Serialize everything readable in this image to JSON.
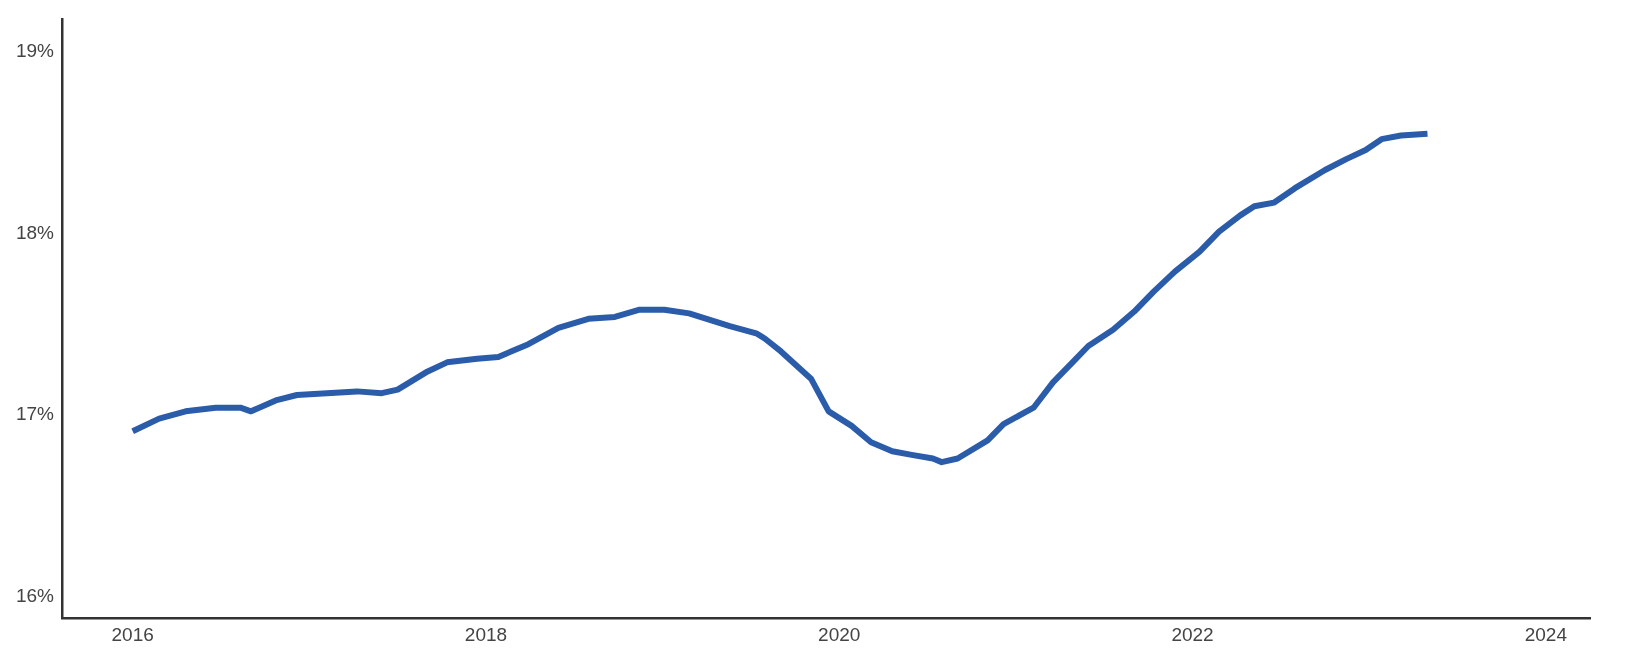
{
  "chart_data": {
    "type": "line",
    "x": [
      2016.0,
      2016.15,
      2016.3,
      2016.47,
      2016.61,
      2016.67,
      2016.81,
      2016.93,
      2017.1,
      2017.27,
      2017.41,
      2017.5,
      2017.67,
      2017.78,
      2017.95,
      2018.07,
      2018.24,
      2018.41,
      2018.58,
      2018.73,
      2018.87,
      2019.01,
      2019.15,
      2019.38,
      2019.53,
      2019.58,
      2019.67,
      2019.84,
      2019.94,
      2020.07,
      2020.18,
      2020.3,
      2020.41,
      2020.53,
      2020.58,
      2020.67,
      2020.84,
      2020.93,
      2021.1,
      2021.21,
      2021.33,
      2021.41,
      2021.55,
      2021.67,
      2021.78,
      2021.9,
      2022.04,
      2022.15,
      2022.27,
      2022.35,
      2022.46,
      2022.58,
      2022.75,
      2022.87,
      2022.98,
      2023.07,
      2023.18,
      2023.33
    ],
    "series": [
      {
        "color": "#2a5caa",
        "values": [
          16.91,
          16.98,
          17.02,
          17.04,
          17.04,
          17.02,
          17.08,
          17.11,
          17.12,
          17.13,
          17.12,
          17.14,
          17.24,
          17.29,
          17.31,
          17.32,
          17.39,
          17.48,
          17.53,
          17.54,
          17.58,
          17.58,
          17.56,
          17.49,
          17.45,
          17.42,
          17.35,
          17.2,
          17.02,
          16.94,
          16.85,
          16.8,
          16.78,
          16.76,
          16.74,
          16.76,
          16.86,
          16.95,
          17.04,
          17.18,
          17.3,
          17.38,
          17.47,
          17.57,
          17.68,
          17.79,
          17.9,
          18.01,
          18.1,
          18.15,
          18.17,
          18.25,
          18.35,
          18.41,
          18.46,
          18.52,
          18.54,
          18.55
        ]
      }
    ],
    "xlim": [
      2015.6,
      2024.25
    ],
    "xticks": [
      2016,
      2018,
      2020,
      2022,
      2024
    ],
    "ylim": [
      15.88,
      19.18
    ],
    "yticks": [
      {
        "value": 16,
        "label": "16%"
      },
      {
        "value": 17,
        "label": "17%"
      },
      {
        "value": 18,
        "label": "18%"
      },
      {
        "value": 19,
        "label": "19%"
      }
    ],
    "grid": false,
    "legend": false,
    "marker": "none",
    "line_style": "solid"
  }
}
